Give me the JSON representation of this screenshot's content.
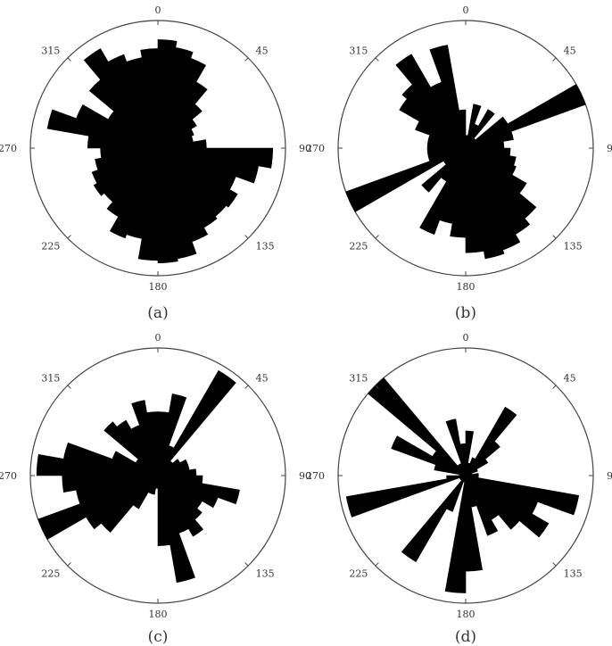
{
  "figure": {
    "colors": {
      "petal": "#000000",
      "ring": "#444444",
      "background": "#ffffff",
      "text": "#333333"
    }
  },
  "chart_data": [
    {
      "type": "rose",
      "panel_label": "(a)",
      "theta_ticks": [
        0,
        45,
        90,
        135,
        180,
        225,
        270,
        315
      ],
      "theta_tick_labels": [
        "0",
        "45",
        "90",
        "135",
        "180",
        "225",
        "270",
        "315"
      ],
      "bin_width_deg": 10,
      "r_max": 1.0,
      "grid": false,
      "bin_starts_deg": [
        0,
        10,
        20,
        30,
        40,
        50,
        60,
        70,
        80,
        90,
        100,
        110,
        120,
        130,
        140,
        150,
        160,
        170,
        180,
        190,
        200,
        210,
        220,
        230,
        240,
        250,
        260,
        270,
        280,
        290,
        300,
        310,
        320,
        330,
        340,
        350
      ],
      "values": [
        0.85,
        0.8,
        0.75,
        0.6,
        0.45,
        0.35,
        0.3,
        0.28,
        0.38,
        0.9,
        0.8,
        0.65,
        0.72,
        0.7,
        0.72,
        0.78,
        0.88,
        0.9,
        0.88,
        0.72,
        0.75,
        0.62,
        0.55,
        0.58,
        0.55,
        0.5,
        0.45,
        0.55,
        0.88,
        0.68,
        0.45,
        0.7,
        0.9,
        0.78,
        0.72,
        0.78
      ]
    },
    {
      "type": "rose",
      "panel_label": "(b)",
      "theta_ticks": [
        0,
        45,
        90,
        135,
        180,
        225,
        270,
        315
      ],
      "theta_tick_labels": [
        "0",
        "45",
        "90",
        "135",
        "180",
        "225",
        "270",
        "315"
      ],
      "bin_width_deg": 10,
      "r_max": 1.0,
      "grid": false,
      "bin_starts_deg": [
        0,
        10,
        20,
        30,
        40,
        50,
        60,
        70,
        80,
        90,
        100,
        110,
        120,
        130,
        140,
        150,
        160,
        170,
        180,
        190,
        200,
        210,
        220,
        230,
        240,
        250,
        260,
        270,
        280,
        290,
        300,
        310,
        320,
        330,
        340,
        350
      ],
      "values": [
        0.1,
        0.35,
        0.2,
        0.35,
        0.1,
        0.38,
        1.0,
        0.38,
        0.3,
        0.35,
        0.4,
        0.42,
        0.55,
        0.72,
        0.78,
        0.85,
        0.88,
        0.82,
        0.7,
        0.6,
        0.72,
        0.3,
        0.45,
        0.2,
        1.0,
        0.3,
        0.3,
        0.3,
        0.3,
        0.42,
        0.6,
        0.65,
        0.85,
        0.55,
        0.82,
        0.3
      ]
    },
    {
      "type": "rose",
      "panel_label": "(c)",
      "theta_ticks": [
        0,
        45,
        90,
        135,
        180,
        225,
        270,
        315
      ],
      "theta_tick_labels": [
        "0",
        "45",
        "90",
        "135",
        "180",
        "225",
        "270",
        "315"
      ],
      "bin_width_deg": 10,
      "r_max": 1.0,
      "grid": false,
      "bin_starts_deg": [
        0,
        10,
        20,
        30,
        40,
        50,
        60,
        70,
        80,
        90,
        100,
        110,
        120,
        130,
        140,
        150,
        160,
        170,
        180,
        190,
        200,
        210,
        220,
        230,
        240,
        250,
        260,
        270,
        280,
        290,
        300,
        310,
        320,
        330,
        340,
        350
      ],
      "values": [
        0.5,
        0.65,
        0.25,
        0.95,
        0.15,
        0.2,
        0.25,
        0.25,
        0.3,
        0.35,
        0.65,
        0.5,
        0.4,
        0.45,
        0.55,
        0.48,
        0.85,
        0.55,
        0.1,
        0.15,
        0.15,
        0.3,
        0.58,
        0.65,
        1.0,
        0.65,
        0.75,
        0.95,
        0.75,
        0.38,
        0.2,
        0.55,
        0.5,
        0.42,
        0.6,
        0.5
      ]
    },
    {
      "type": "rose",
      "panel_label": "(d)",
      "theta_ticks": [
        0,
        45,
        90,
        135,
        180,
        225,
        270,
        315
      ],
      "theta_tick_labels": [
        "0",
        "45",
        "90",
        "135",
        "180",
        "225",
        "270",
        "315"
      ],
      "bin_width_deg": 10,
      "r_max": 1.0,
      "grid": false,
      "bin_starts_deg": [
        0,
        10,
        20,
        30,
        40,
        50,
        60,
        70,
        80,
        90,
        100,
        110,
        120,
        130,
        140,
        150,
        160,
        170,
        180,
        190,
        200,
        210,
        220,
        230,
        240,
        250,
        260,
        270,
        280,
        290,
        300,
        310,
        320,
        330,
        340,
        350
      ],
      "values": [
        0.35,
        0.1,
        0.15,
        0.62,
        0.35,
        0.2,
        0.1,
        0.05,
        0.1,
        0.1,
        0.9,
        0.6,
        0.75,
        0.55,
        0.4,
        0.5,
        0.25,
        0.75,
        0.92,
        0.05,
        0.3,
        0.78,
        0.05,
        0.05,
        0.05,
        0.95,
        0.15,
        0.05,
        0.25,
        0.62,
        0.3,
        1.0,
        0.1,
        0.1,
        0.45,
        0.25
      ]
    }
  ]
}
